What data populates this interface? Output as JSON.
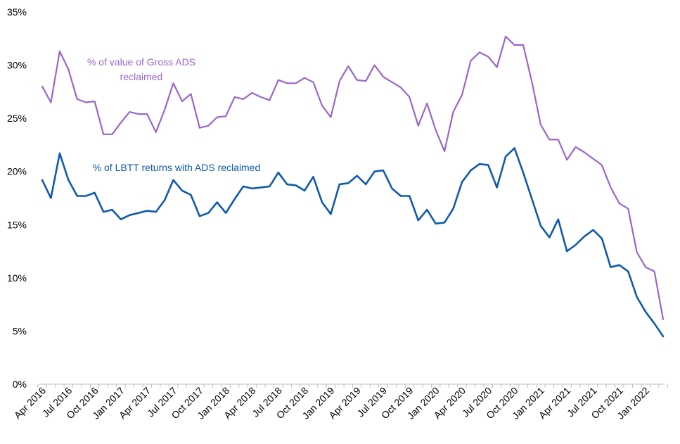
{
  "chart_data": {
    "type": "line",
    "y_ticks": [
      "0%",
      "5%",
      "10%",
      "15%",
      "20%",
      "25%",
      "30%",
      "35%"
    ],
    "ylim": [
      0,
      35
    ],
    "y_tick_values": [
      0,
      5,
      10,
      15,
      20,
      25,
      30,
      35
    ],
    "grid": false,
    "x_tick_labels": [
      "Apr 2016",
      "Jul 2016",
      "Oct 2016",
      "Jan 2017",
      "Apr 2017",
      "Jul 2017",
      "Oct 2017",
      "Jan 2018",
      "Apr 2018",
      "Jul 2018",
      "Oct 2018",
      "Jan 2019",
      "Apr 2019",
      "Jul 2019",
      "Oct 2019",
      "Jan 2020",
      "Apr 2020",
      "Jul 2020",
      "Oct 2020",
      "Jan 2021",
      "Apr 2021",
      "Jul 2021",
      "Oct 2021",
      "Jan 2022"
    ],
    "x_tick_every_n_months": 3,
    "months_count": 72,
    "series": [
      {
        "name": "% of value of Gross ADS reclaimed",
        "label_lines": [
          "% of value of Gross ADS",
          "reclaimed"
        ],
        "color": "#9966CC",
        "values": [
          28.0,
          26.5,
          31.3,
          29.6,
          26.8,
          26.5,
          26.6,
          23.5,
          23.5,
          24.6,
          25.6,
          25.4,
          25.4,
          23.7,
          25.8,
          28.3,
          26.6,
          27.3,
          24.1,
          24.3,
          25.1,
          25.2,
          27.0,
          26.8,
          27.4,
          27.0,
          26.7,
          28.6,
          28.3,
          28.3,
          28.8,
          28.4,
          26.2,
          25.1,
          28.5,
          29.9,
          28.6,
          28.5,
          30.0,
          28.9,
          28.4,
          27.9,
          27.0,
          24.3,
          26.4,
          23.9,
          21.9,
          25.6,
          27.2,
          30.4,
          31.2,
          30.8,
          29.8,
          32.7,
          31.9,
          31.9,
          28.4,
          24.4,
          23.0,
          23.0,
          21.1,
          22.3,
          21.8,
          21.2,
          20.6,
          18.5,
          17.0,
          16.5,
          12.4,
          11.0,
          10.6,
          6.1
        ]
      },
      {
        "name": "% of LBTT returns with ADS reclaimed",
        "label_lines": [
          "% of LBTT returns with ADS reclaimed"
        ],
        "color": "#0F5AAE",
        "values": [
          19.2,
          17.5,
          21.7,
          19.2,
          17.7,
          17.7,
          18.0,
          16.2,
          16.4,
          15.5,
          15.9,
          16.1,
          16.3,
          16.2,
          17.3,
          19.2,
          18.2,
          17.8,
          15.8,
          16.1,
          17.1,
          16.1,
          17.4,
          18.6,
          18.4,
          18.5,
          18.6,
          19.9,
          18.8,
          18.7,
          18.2,
          19.5,
          17.1,
          16.0,
          18.8,
          18.9,
          19.6,
          18.8,
          20.0,
          20.1,
          18.4,
          17.7,
          17.7,
          15.4,
          16.4,
          15.1,
          15.2,
          16.5,
          19.0,
          20.1,
          20.7,
          20.6,
          18.5,
          21.4,
          22.2,
          19.9,
          17.4,
          14.9,
          13.8,
          15.5,
          12.5,
          13.1,
          13.9,
          14.5,
          13.7,
          11.0,
          11.2,
          10.6,
          8.2,
          6.8,
          5.7,
          4.5
        ]
      }
    ]
  }
}
